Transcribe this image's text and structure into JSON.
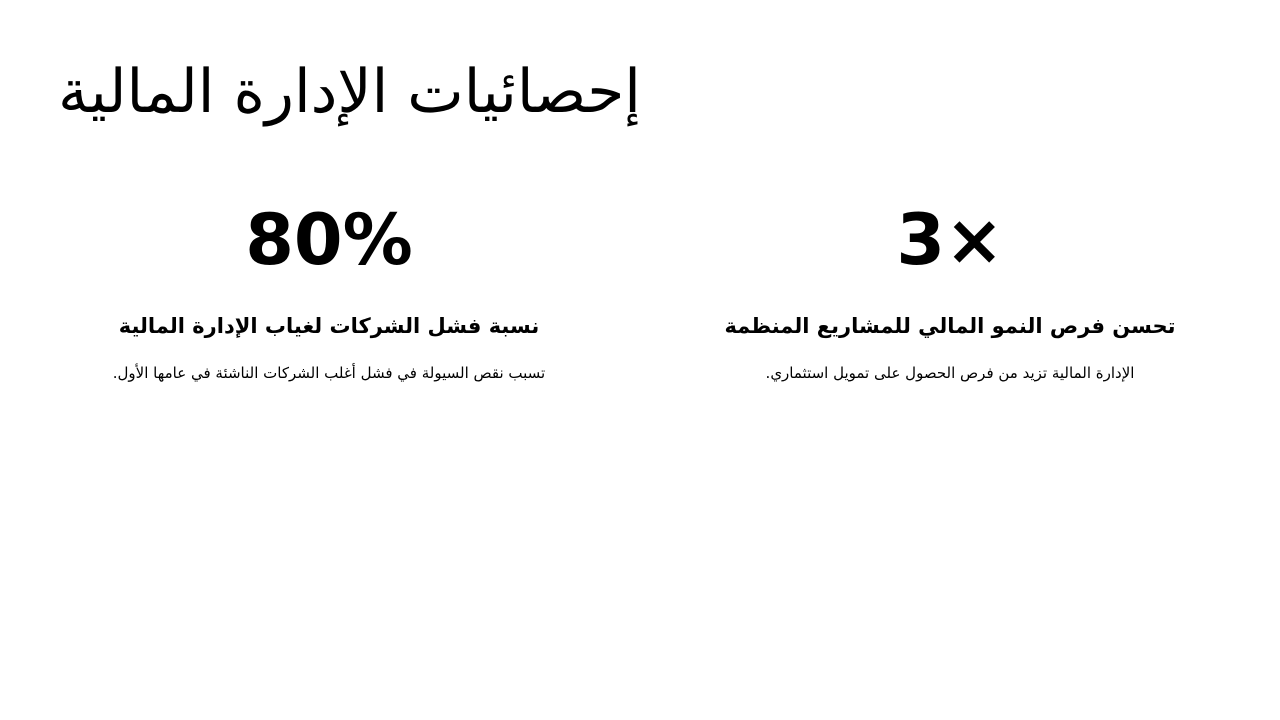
{
  "title": "إحصائيات الإدارة المالية",
  "stats": [
    {
      "value": "80%",
      "heading": "نسبة فشل الشركات لغياب الإدارة المالية",
      "description": "تسبب نقص السيولة في فشل أغلب الشركات الناشئة في عامها الأول."
    },
    {
      "value": "3×",
      "heading": "تحسن فرص النمو المالي للمشاريع المنظمة",
      "description": "الإدارة المالية تزيد من فرص الحصول على تمويل استثماري."
    }
  ]
}
